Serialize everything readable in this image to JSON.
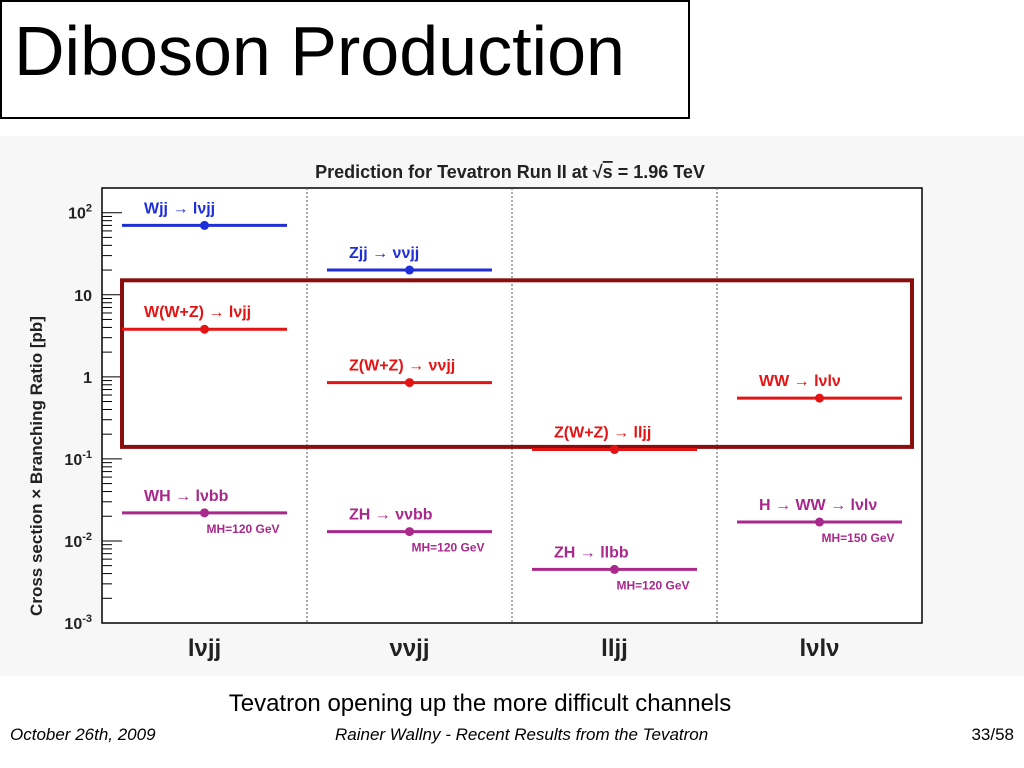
{
  "slide": {
    "title": "Diboson Production",
    "caption": "Tevatron opening up  the more difficult channels",
    "footer_left": "October 26th, 2009",
    "footer_center": "Rainer Wallny - Recent Results from the Tevatron",
    "footer_right": "33/58"
  },
  "colors": {
    "blue": "#1f2fd8",
    "red": "#e41414",
    "magenta": "#a8288c",
    "box": "#8b0e0e"
  },
  "chart_data": {
    "type": "scatter",
    "title_prefix": "Prediction for Tevatron Run II at ",
    "title_sqrt": "s",
    "title_suffix": " = 1.96 TeV",
    "ylabel": "Cross section × Branching Ratio [pb]",
    "y_scale": "log",
    "ylim": [
      0.001,
      200
    ],
    "y_ticks": [
      {
        "value": 100,
        "base": "10",
        "exp": "2"
      },
      {
        "value": 10,
        "base": "10",
        "exp": ""
      },
      {
        "value": 1,
        "base": "1",
        "exp": ""
      },
      {
        "value": 0.1,
        "base": "10",
        "exp": "-1"
      },
      {
        "value": 0.01,
        "base": "10",
        "exp": "-2"
      },
      {
        "value": 0.001,
        "base": "10",
        "exp": "-3"
      }
    ],
    "categories": [
      "lνjj",
      "ννjj",
      "lljj",
      "lνlν"
    ],
    "highlight_box": {
      "color": "#8b0e0e",
      "y_range": [
        0.14,
        15
      ],
      "label": ""
    },
    "points": [
      {
        "category": 0,
        "y": 70,
        "label": "Wjj → lνjj",
        "note": "",
        "color": "blue"
      },
      {
        "category": 0,
        "y": 3.8,
        "label": "W(W+Z) → lνjj",
        "note": "",
        "color": "red"
      },
      {
        "category": 0,
        "y": 0.022,
        "label": "WH → lνbb",
        "note": "MH=120 GeV",
        "color": "magenta"
      },
      {
        "category": 1,
        "y": 20,
        "label": "Zjj → ννjj",
        "note": "",
        "color": "blue"
      },
      {
        "category": 1,
        "y": 0.85,
        "label": "Z(W+Z) → ννjj",
        "note": "",
        "color": "red"
      },
      {
        "category": 1,
        "y": 0.013,
        "label": "ZH → ννbb",
        "note": "MH=120 GeV",
        "color": "magenta"
      },
      {
        "category": 2,
        "y": 0.13,
        "label": "Z(W+Z) → lljj",
        "note": "",
        "color": "red"
      },
      {
        "category": 2,
        "y": 0.0045,
        "label": "ZH → llbb",
        "note": "MH=120 GeV",
        "color": "magenta"
      },
      {
        "category": 3,
        "y": 0.55,
        "label": "WW → lνlν",
        "note": "",
        "color": "red"
      },
      {
        "category": 3,
        "y": 0.017,
        "label": "H → WW → lνlν",
        "note": "MH=150 GeV",
        "color": "magenta"
      }
    ]
  }
}
